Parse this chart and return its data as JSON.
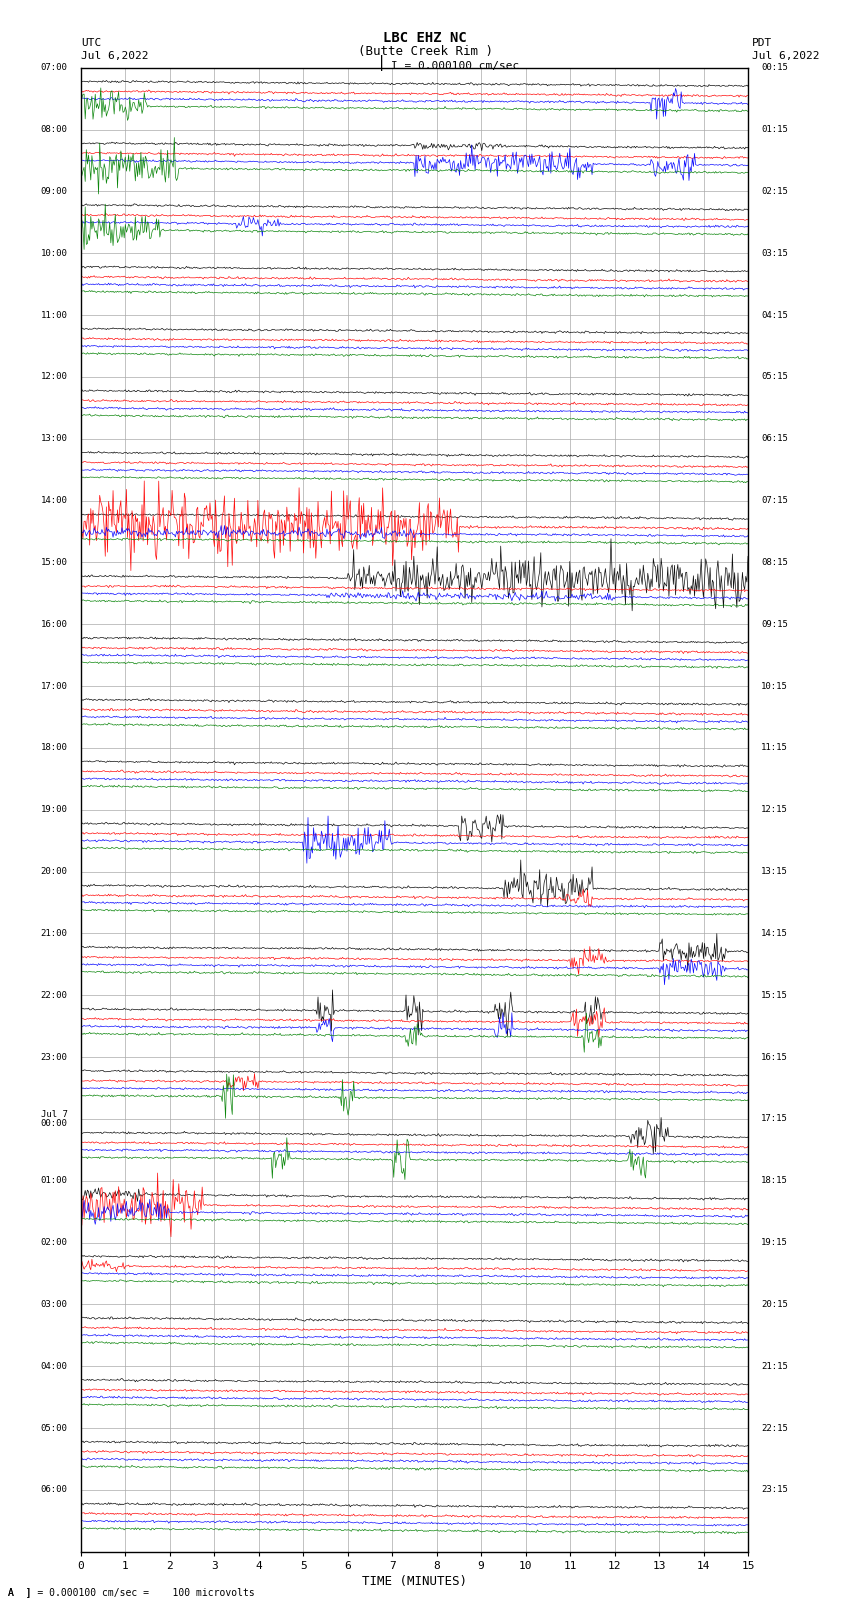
{
  "title_line1": "LBC EHZ NC",
  "title_line2": "(Butte Creek Rim )",
  "scale_text": "I = 0.000100 cm/sec",
  "left_label": "UTC",
  "left_date": "Jul 6,2022",
  "right_label": "PDT",
  "right_date": "Jul 6,2022",
  "bottom_label": "TIME (MINUTES)",
  "footer_text": "A  ] = 0.000100 cm/sec =    100 microvolts",
  "utc_times": [
    "07:00",
    "08:00",
    "09:00",
    "10:00",
    "11:00",
    "12:00",
    "13:00",
    "14:00",
    "15:00",
    "16:00",
    "17:00",
    "18:00",
    "19:00",
    "20:00",
    "21:00",
    "22:00",
    "23:00",
    "Jul 7\n00:00",
    "01:00",
    "02:00",
    "03:00",
    "04:00",
    "05:00",
    "06:00"
  ],
  "pdt_times": [
    "00:15",
    "01:15",
    "02:15",
    "03:15",
    "04:15",
    "05:15",
    "06:15",
    "07:15",
    "08:15",
    "09:15",
    "10:15",
    "11:15",
    "12:15",
    "13:15",
    "14:15",
    "15:15",
    "16:15",
    "17:15",
    "18:15",
    "19:15",
    "20:15",
    "21:15",
    "22:15",
    "23:15"
  ],
  "n_rows": 24,
  "x_min": 0,
  "x_max": 15,
  "minutes_per_row": 60,
  "background_color": "#ffffff",
  "grid_color": "#aaaaaa",
  "figsize": [
    8.5,
    16.13
  ],
  "dpi": 100,
  "n_channels": 4,
  "channel_colors": [
    "black",
    "red",
    "blue",
    "green"
  ],
  "channel_offsets_in_row": [
    0.78,
    0.62,
    0.5,
    0.38
  ],
  "total_minutes": 1440,
  "sample_rate": 100
}
